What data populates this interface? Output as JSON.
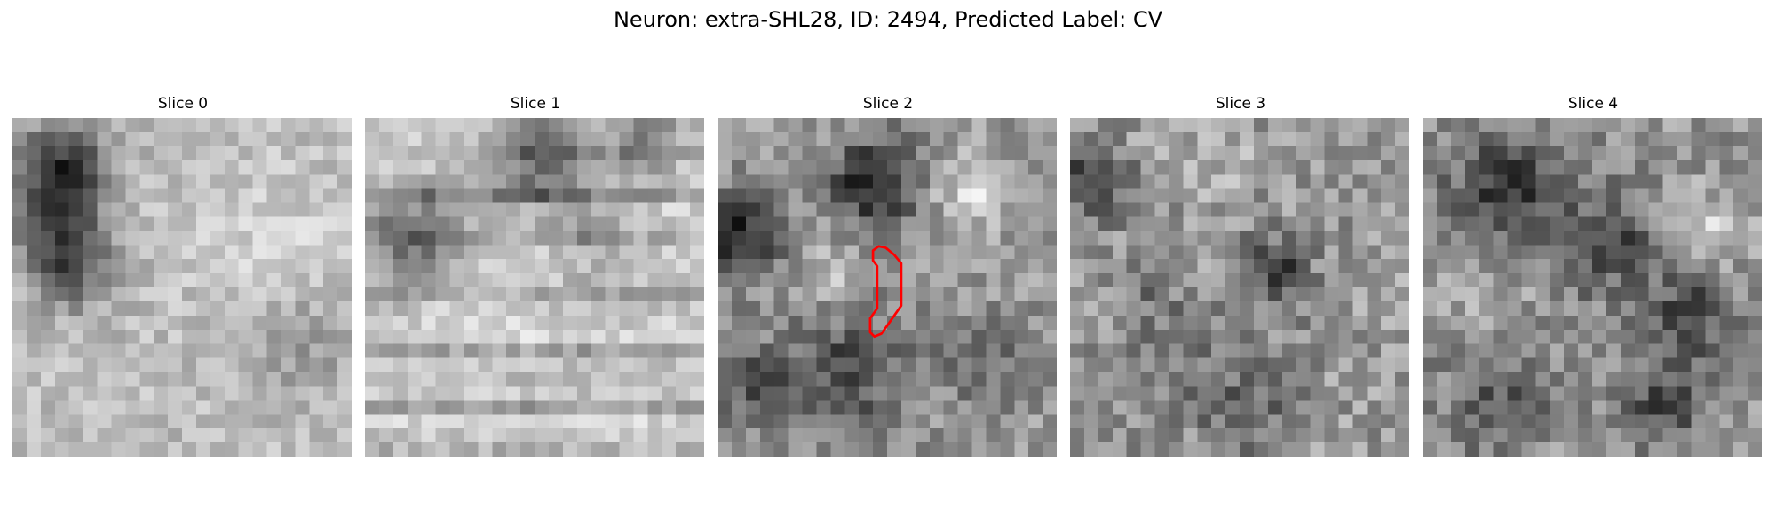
{
  "figure": {
    "title": "Neuron: extra-SHL28, ID: 2494, Predicted Label: CV"
  },
  "panels": [
    {
      "title": "Slice 0"
    },
    {
      "title": "Slice 1"
    },
    {
      "title": "Slice 2"
    },
    {
      "title": "Slice 3"
    },
    {
      "title": "Slice 4"
    }
  ],
  "colors": {
    "contour": "#ff0000",
    "background": "#ffffff"
  }
}
